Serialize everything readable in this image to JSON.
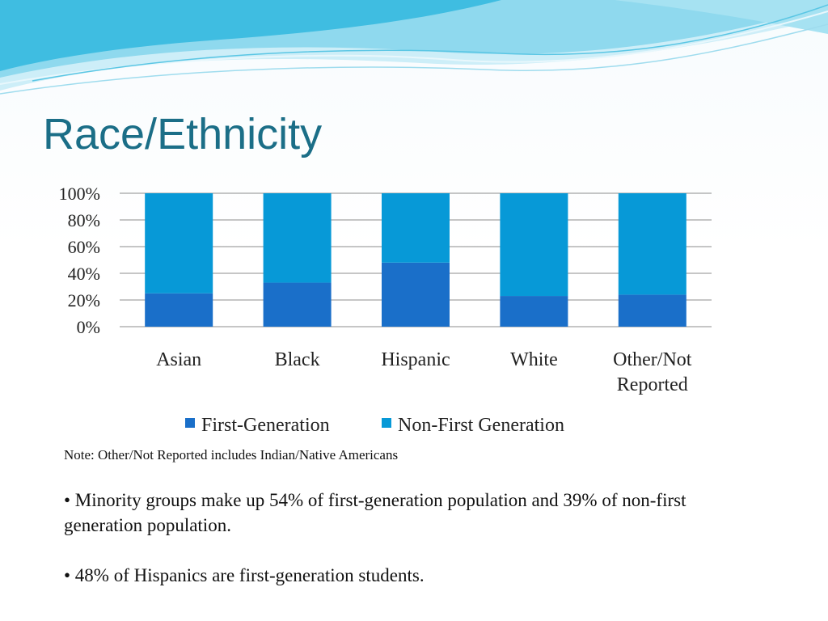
{
  "slide": {
    "title": "Race/Ethnicity",
    "note": "Note: Other/Not Reported includes Indian/Native Americans",
    "bullets": [
      "• Minority groups make up 54% of first-generation population and 39% of non-first generation population.",
      "• 48% of Hispanics are first-generation students."
    ]
  },
  "chart_data": {
    "type": "bar",
    "stacked": true,
    "percent_stacked": true,
    "categories": [
      [
        "Asian"
      ],
      [
        "Black"
      ],
      [
        "Hispanic"
      ],
      [
        "White"
      ],
      [
        "Other/Not",
        "Reported"
      ]
    ],
    "series": [
      {
        "name": "First-Generation",
        "values": [
          25,
          33,
          48,
          23,
          24
        ],
        "color": "#1a6fc9"
      },
      {
        "name": "Non-First Generation",
        "values": [
          75,
          67,
          52,
          77,
          76
        ],
        "color": "#0799d7"
      }
    ],
    "ylim": [
      0,
      100
    ],
    "yticks": [
      "0%",
      "20%",
      "40%",
      "60%",
      "80%",
      "100%"
    ],
    "title": "",
    "xlabel": "",
    "ylabel": "",
    "grid": true,
    "legend_position": "bottom"
  },
  "colors": {
    "title": "#1b6e87",
    "gridline": "#8c8c8c",
    "wave_light": "#bfe9f6",
    "wave_mid": "#6fcfe9",
    "wave_dark": "#2fb5dc"
  }
}
